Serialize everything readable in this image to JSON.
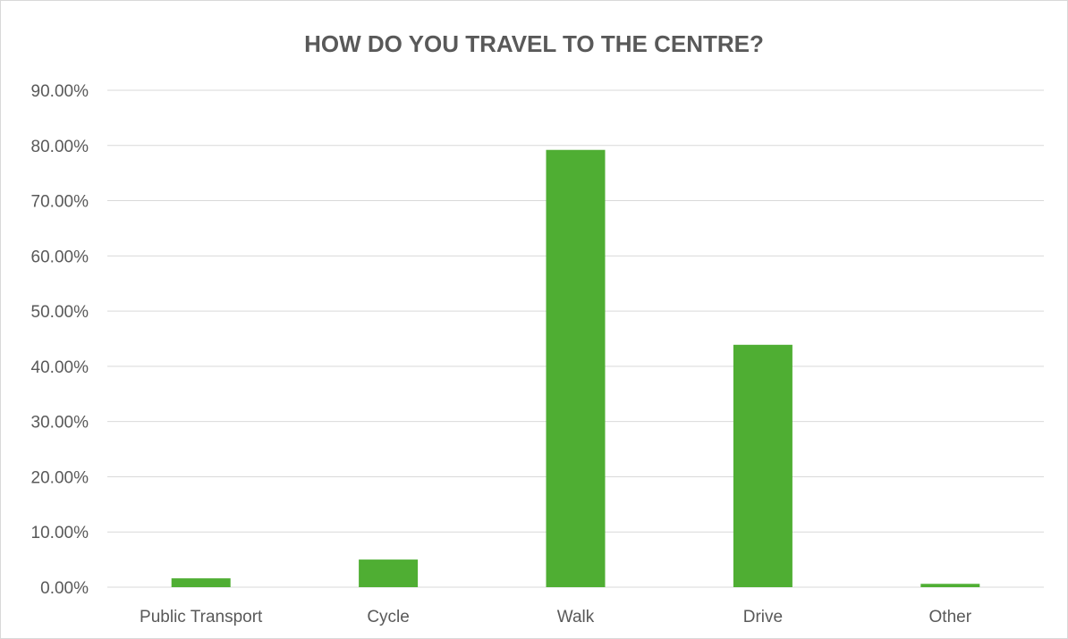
{
  "chart_data": {
    "type": "bar",
    "title": "HOW DO YOU TRAVEL TO THE CENTRE?",
    "categories": [
      "Public Transport",
      "Cycle",
      "Walk",
      "Drive",
      "Other"
    ],
    "values": [
      1.6,
      5.0,
      79.2,
      43.9,
      0.6
    ],
    "yticks": [
      "0.00%",
      "10.00%",
      "20.00%",
      "30.00%",
      "40.00%",
      "50.00%",
      "60.00%",
      "70.00%",
      "80.00%",
      "90.00%"
    ],
    "ylim": [
      0,
      90
    ],
    "xlabel": "",
    "ylabel": "",
    "grid": true,
    "bar_color": "#4fae33",
    "grid_color": "#d9d9d9"
  }
}
